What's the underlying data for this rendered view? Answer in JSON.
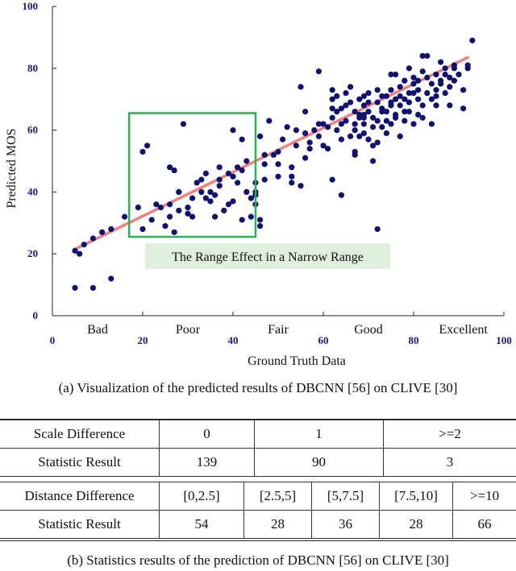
{
  "chart_data": {
    "type": "scatter",
    "xlabel": "Ground Truth Data",
    "ylabel": "Predicted MOS",
    "xlim": [
      0,
      100
    ],
    "ylim": [
      0,
      100
    ],
    "x_ticks": [
      "0",
      "20",
      "40",
      "60",
      "80",
      "100"
    ],
    "y_ticks": [
      "0",
      "20",
      "40",
      "60",
      "80",
      "100"
    ],
    "quality_labels": [
      {
        "text": "Bad",
        "x": 10
      },
      {
        "text": "Poor",
        "x": 30
      },
      {
        "text": "Fair",
        "x": 50
      },
      {
        "text": "Good",
        "x": 70
      },
      {
        "text": "Excellent",
        "x": 91
      }
    ],
    "fit_line": {
      "x": [
        5,
        92
      ],
      "y": [
        21.5,
        83.5
      ],
      "color": "#f08080"
    },
    "box_annotation": {
      "text": "The Range Effect in a Narrow Range",
      "x_range": [
        17,
        45
      ],
      "y_range": [
        25.5,
        65.5
      ],
      "color": "#2bb052"
    },
    "point_color": "#10106e",
    "points": [
      [
        5,
        9
      ],
      [
        5,
        21
      ],
      [
        6,
        20
      ],
      [
        7,
        23
      ],
      [
        9,
        9
      ],
      [
        9,
        25
      ],
      [
        11,
        27
      ],
      [
        13,
        12
      ],
      [
        13,
        28
      ],
      [
        16,
        32
      ],
      [
        19,
        35
      ],
      [
        20,
        53
      ],
      [
        20,
        28
      ],
      [
        21,
        55
      ],
      [
        22,
        31
      ],
      [
        23,
        36
      ],
      [
        24,
        35
      ],
      [
        25,
        29
      ],
      [
        26,
        32
      ],
      [
        26,
        36
      ],
      [
        26,
        48
      ],
      [
        27,
        27
      ],
      [
        27,
        47
      ],
      [
        28,
        34
      ],
      [
        28,
        40
      ],
      [
        28,
        40
      ],
      [
        29,
        62
      ],
      [
        30,
        33
      ],
      [
        30,
        35
      ],
      [
        31,
        38
      ],
      [
        31,
        32
      ],
      [
        32,
        43
      ],
      [
        33,
        40
      ],
      [
        33,
        44
      ],
      [
        34,
        38
      ],
      [
        34,
        46
      ],
      [
        35,
        37
      ],
      [
        35,
        40
      ],
      [
        36,
        39
      ],
      [
        36,
        32
      ],
      [
        37,
        42
      ],
      [
        37,
        48
      ],
      [
        37,
        44
      ],
      [
        38,
        34
      ],
      [
        39,
        36
      ],
      [
        39,
        46
      ],
      [
        40,
        37
      ],
      [
        40,
        45
      ],
      [
        40,
        60
      ],
      [
        41,
        43
      ],
      [
        41,
        48
      ],
      [
        42,
        47
      ],
      [
        42,
        31
      ],
      [
        42,
        57
      ],
      [
        43,
        50
      ],
      [
        43,
        40
      ],
      [
        44,
        38
      ],
      [
        44,
        32
      ],
      [
        45,
        43
      ],
      [
        45,
        36
      ],
      [
        45,
        40
      ],
      [
        46,
        31
      ],
      [
        46,
        58
      ],
      [
        47,
        44
      ],
      [
        47,
        49
      ],
      [
        48,
        63
      ],
      [
        49,
        52
      ],
      [
        50,
        45
      ],
      [
        50,
        49
      ],
      [
        50,
        53
      ],
      [
        51,
        57
      ],
      [
        52,
        61
      ],
      [
        53,
        48
      ],
      [
        53,
        45
      ],
      [
        54,
        55
      ],
      [
        54,
        60
      ],
      [
        55,
        74
      ],
      [
        55,
        42
      ],
      [
        56,
        51
      ],
      [
        56,
        59
      ],
      [
        57,
        54
      ],
      [
        57,
        56
      ],
      [
        58,
        60
      ],
      [
        59,
        62
      ],
      [
        59,
        79
      ],
      [
        59,
        58
      ],
      [
        60,
        55
      ],
      [
        61,
        54
      ],
      [
        61,
        61
      ],
      [
        62,
        64
      ],
      [
        62,
        44
      ],
      [
        62,
        70
      ],
      [
        62,
        73
      ],
      [
        63,
        66
      ],
      [
        63,
        71
      ],
      [
        63,
        60
      ],
      [
        64,
        62
      ],
      [
        64,
        67
      ],
      [
        64,
        57
      ],
      [
        65,
        68
      ],
      [
        65,
        72
      ],
      [
        65,
        63
      ],
      [
        66,
        58
      ],
      [
        66,
        69
      ],
      [
        66,
        74
      ],
      [
        67,
        66
      ],
      [
        67,
        62
      ],
      [
        67,
        60
      ],
      [
        67,
        53
      ],
      [
        68,
        70
      ],
      [
        68,
        65
      ],
      [
        68,
        64
      ],
      [
        68,
        58
      ],
      [
        69,
        71
      ],
      [
        69,
        68
      ],
      [
        69,
        65
      ],
      [
        69,
        59
      ],
      [
        69,
        62
      ],
      [
        70,
        72
      ],
      [
        70,
        66
      ],
      [
        70,
        69
      ],
      [
        70,
        57
      ],
      [
        71,
        64
      ],
      [
        71,
        61
      ],
      [
        71,
        50
      ],
      [
        72,
        73
      ],
      [
        72,
        69
      ],
      [
        72,
        63
      ],
      [
        72,
        56
      ],
      [
        72,
        28
      ],
      [
        73,
        67
      ],
      [
        73,
        66
      ],
      [
        73,
        61
      ],
      [
        73,
        71
      ],
      [
        74,
        66
      ],
      [
        74,
        71
      ],
      [
        74,
        63
      ],
      [
        74,
        59
      ],
      [
        75,
        73
      ],
      [
        75,
        78
      ],
      [
        75,
        68
      ],
      [
        75,
        62
      ],
      [
        75,
        69
      ],
      [
        76,
        78
      ],
      [
        76,
        70
      ],
      [
        76,
        65
      ],
      [
        76,
        64
      ],
      [
        77,
        74
      ],
      [
        77,
        68
      ],
      [
        77,
        58
      ],
      [
        77,
        71
      ],
      [
        78,
        76
      ],
      [
        78,
        70
      ],
      [
        78,
        66
      ],
      [
        78,
        63
      ],
      [
        79,
        72
      ],
      [
        79,
        80
      ],
      [
        79,
        69
      ],
      [
        79,
        66
      ],
      [
        80,
        77
      ],
      [
        80,
        75
      ],
      [
        80,
        72
      ],
      [
        80,
        62
      ],
      [
        81,
        76
      ],
      [
        81,
        73
      ],
      [
        81,
        70
      ],
      [
        81,
        65
      ],
      [
        82,
        79
      ],
      [
        82,
        84
      ],
      [
        82,
        68
      ],
      [
        82,
        64
      ],
      [
        83,
        84
      ],
      [
        83,
        77
      ],
      [
        83,
        72
      ],
      [
        84,
        75
      ],
      [
        84,
        70
      ],
      [
        84,
        62
      ],
      [
        85,
        78
      ],
      [
        85,
        71
      ],
      [
        85,
        68
      ],
      [
        85,
        73
      ],
      [
        86,
        76
      ],
      [
        86,
        75
      ],
      [
        86,
        82
      ],
      [
        87,
        78
      ],
      [
        87,
        72
      ],
      [
        87,
        80
      ],
      [
        88,
        77
      ],
      [
        88,
        68
      ],
      [
        88,
        74
      ],
      [
        89,
        81
      ],
      [
        89,
        76
      ],
      [
        89,
        80
      ],
      [
        90,
        78
      ],
      [
        91,
        73
      ],
      [
        91,
        67
      ],
      [
        92,
        81
      ],
      [
        92,
        80
      ],
      [
        93,
        89
      ],
      [
        46,
        29
      ],
      [
        56,
        66
      ],
      [
        53,
        43
      ],
      [
        64,
        39
      ],
      [
        67,
        52
      ],
      [
        69,
        64
      ],
      [
        71,
        55
      ],
      [
        45,
        39
      ],
      [
        47,
        52
      ],
      [
        60,
        62
      ],
      [
        62,
        67
      ]
    ]
  },
  "caption_a": "(a)  Visualization of the predicted results of DBCNN [56] on CLIVE [30]",
  "caption_b": "(b)  Statistics results of the prediction of DBCNN [56] on CLIVE [30]",
  "table1": {
    "header": [
      "Scale Difference",
      "0",
      "1",
      ">=2"
    ],
    "row": [
      "Statistic Result",
      "139",
      "90",
      "3"
    ]
  },
  "table2": {
    "header": [
      "Distance Difference",
      "[0,2.5]",
      "[2.5,5]",
      "[5,7.5]",
      "[7.5,10]",
      ">=10"
    ],
    "row": [
      "Statistic Result",
      "54",
      "28",
      "36",
      "28",
      "66"
    ]
  }
}
